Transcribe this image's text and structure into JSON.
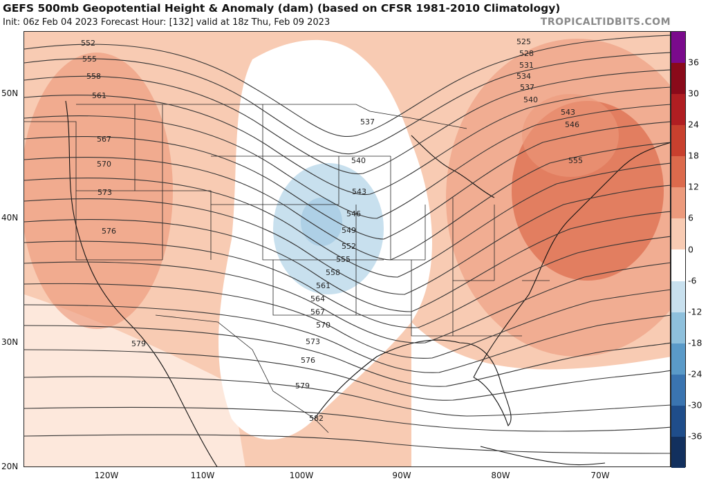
{
  "title": "GEFS 500mb Geopotential Height & Anomaly (dam) (based on CFSR 1981-2010 Climatology)",
  "subtitle": "Init: 06z Feb 04 2023   Forecast Hour: [132]   valid at 18z Thu, Feb 09 2023",
  "brand": "TROPICALTIDBITS.COM",
  "lat_labels": [
    "50N",
    "40N",
    "30N",
    "20N"
  ],
  "lon_labels": [
    "120W",
    "110W",
    "100W",
    "90W",
    "80W",
    "70W"
  ],
  "colorbar": {
    "labels": [
      "36",
      "30",
      "24",
      "18",
      "12",
      "6",
      "0",
      "-6",
      "-12",
      "-18",
      "-24",
      "-30",
      "-36"
    ],
    "colors": [
      "#7a0a8c",
      "#8a0a1a",
      "#b01e22",
      "#c8402e",
      "#dc6a4c",
      "#ec9a7c",
      "#f8cbb3",
      "#ffffff",
      "#c8e0ee",
      "#8ec0dc",
      "#5a9ac8",
      "#3a74b0",
      "#1f4d8a",
      "#12305e"
    ]
  },
  "contour_labels": [
    "525",
    "528",
    "531",
    "534",
    "537",
    "540",
    "543",
    "546",
    "549",
    "552",
    "555",
    "558",
    "561",
    "564",
    "567",
    "570",
    "573",
    "576",
    "579",
    "582"
  ]
}
